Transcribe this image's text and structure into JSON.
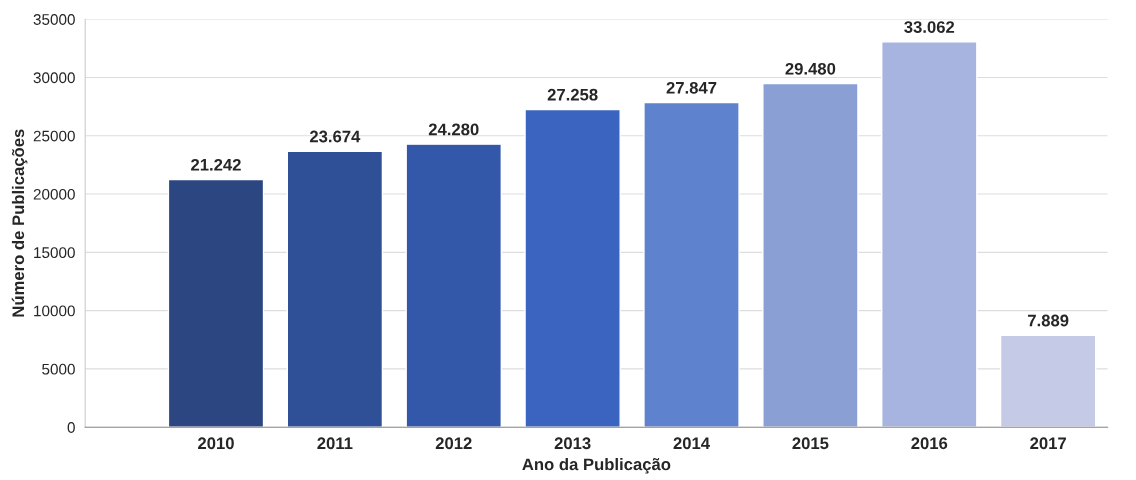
{
  "chart_data": {
    "type": "bar",
    "xlabel": "Ano da Publicação",
    "ylabel": "Número de Publicações",
    "categories": [
      "2010",
      "2011",
      "2012",
      "2013",
      "2014",
      "2015",
      "2016",
      "2017"
    ],
    "values": [
      21242,
      23674,
      24280,
      27258,
      27847,
      29480,
      33062,
      7889
    ],
    "value_labels": [
      "21.242",
      "23.674",
      "24.280",
      "27.258",
      "27.847",
      "29.480",
      "33.062",
      "7.889"
    ],
    "colors": [
      "#2c4682",
      "#2f5096",
      "#3358aa",
      "#3a64c0",
      "#5f82cf",
      "#8a9fd4",
      "#a8b4e0",
      "#c5cae6"
    ],
    "ylim": [
      0,
      35000
    ],
    "yticks": [
      0,
      5000,
      10000,
      15000,
      20000,
      25000,
      30000,
      35000
    ],
    "grid": "y"
  }
}
